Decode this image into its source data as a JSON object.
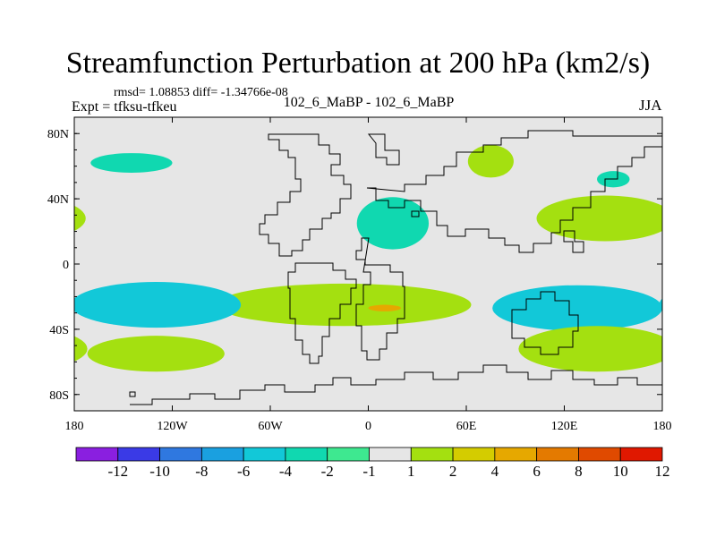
{
  "header": {
    "title": "Streamfunction Perturbation at 200 hPa (km2/s)",
    "stats": "rmsd= 1.08853 diff= -1.34766e-08",
    "experiment": "Expt = tfksu-tfkeu",
    "center_label": "102_6_MaBP - 102_6_MaBP",
    "season": "JJA"
  },
  "chart_data": {
    "type": "heatmap",
    "title": "Streamfunction Perturbation at 200 hPa (km2/s)",
    "subtitle": "102_6_MaBP - 102_6_MaBP",
    "variable": "Streamfunction Perturbation",
    "units": "km2/s",
    "level": "200 hPa",
    "season": "JJA",
    "xlim": [
      -180,
      180
    ],
    "ylim": [
      -90,
      90
    ],
    "x_ticks": [
      {
        "value": -180,
        "label": "180"
      },
      {
        "value": -120,
        "label": "120W"
      },
      {
        "value": -60,
        "label": "60W"
      },
      {
        "value": 0,
        "label": "0"
      },
      {
        "value": 60,
        "label": "60E"
      },
      {
        "value": 120,
        "label": "120E"
      },
      {
        "value": 180,
        "label": "180"
      }
    ],
    "y_ticks": [
      {
        "value": 80,
        "label": "80N"
      },
      {
        "value": 40,
        "label": "40N"
      },
      {
        "value": 0,
        "label": "0"
      },
      {
        "value": -40,
        "label": "40S"
      },
      {
        "value": -80,
        "label": "80S"
      }
    ],
    "levels": [
      -12,
      -10,
      -8,
      -6,
      -4,
      -2,
      -1,
      1,
      2,
      4,
      6,
      8,
      10,
      12
    ],
    "level_labels": [
      "-12",
      "-10",
      "-8",
      "-6",
      "-4",
      "-2",
      "-1",
      "1",
      "2",
      "4",
      "6",
      "8",
      "10",
      "12"
    ],
    "colors": [
      "#8a1fe0",
      "#3a3ae6",
      "#2f78e0",
      "#1aa0e0",
      "#12c8d8",
      "#10d8b0",
      "#3ee890",
      "#e6e6e6",
      "#a4e010",
      "#d4cc00",
      "#e6a800",
      "#e47a00",
      "#e04a00",
      "#e01800"
    ],
    "background_color": "#e6e6e6",
    "features": [
      {
        "name": "south-central-positive",
        "lon": -15,
        "lat": -25,
        "lon_radius": 78,
        "lat_radius": 13,
        "value": 3
      },
      {
        "name": "south-central-max",
        "lon": 10,
        "lat": -27,
        "lon_radius": 10,
        "lat_radius": 2,
        "value": 6
      },
      {
        "name": "south-pacific-negative",
        "lon": -130,
        "lat": -25,
        "lon_radius": 52,
        "lat_radius": 14,
        "value": -4
      },
      {
        "name": "south-indian-negative",
        "lon": 128,
        "lat": -27,
        "lon_radius": 52,
        "lat_radius": 14,
        "value": -4
      },
      {
        "name": "southern-positive-west",
        "lon": -130,
        "lat": -55,
        "lon_radius": 42,
        "lat_radius": 11,
        "value": 2
      },
      {
        "name": "southern-positive-east",
        "lon": 140,
        "lat": -52,
        "lon_radius": 48,
        "lat_radius": 14,
        "value": 2
      },
      {
        "name": "north-africa-negative",
        "lon": 15,
        "lat": 25,
        "lon_radius": 22,
        "lat_radius": 16,
        "value": -2
      },
      {
        "name": "north-asia-positive",
        "lon": 75,
        "lat": 63,
        "lon_radius": 14,
        "lat_radius": 10,
        "value": 2
      },
      {
        "name": "east-asia-positive",
        "lon": 145,
        "lat": 28,
        "lon_radius": 42,
        "lat_radius": 14,
        "value": 2
      },
      {
        "name": "north-pacific-negative",
        "lon": -145,
        "lat": 62,
        "lon_radius": 25,
        "lat_radius": 6,
        "value": -2
      },
      {
        "name": "east-siberia-negative",
        "lon": 150,
        "lat": 52,
        "lon_radius": 10,
        "lat_radius": 5,
        "value": -2
      }
    ]
  }
}
